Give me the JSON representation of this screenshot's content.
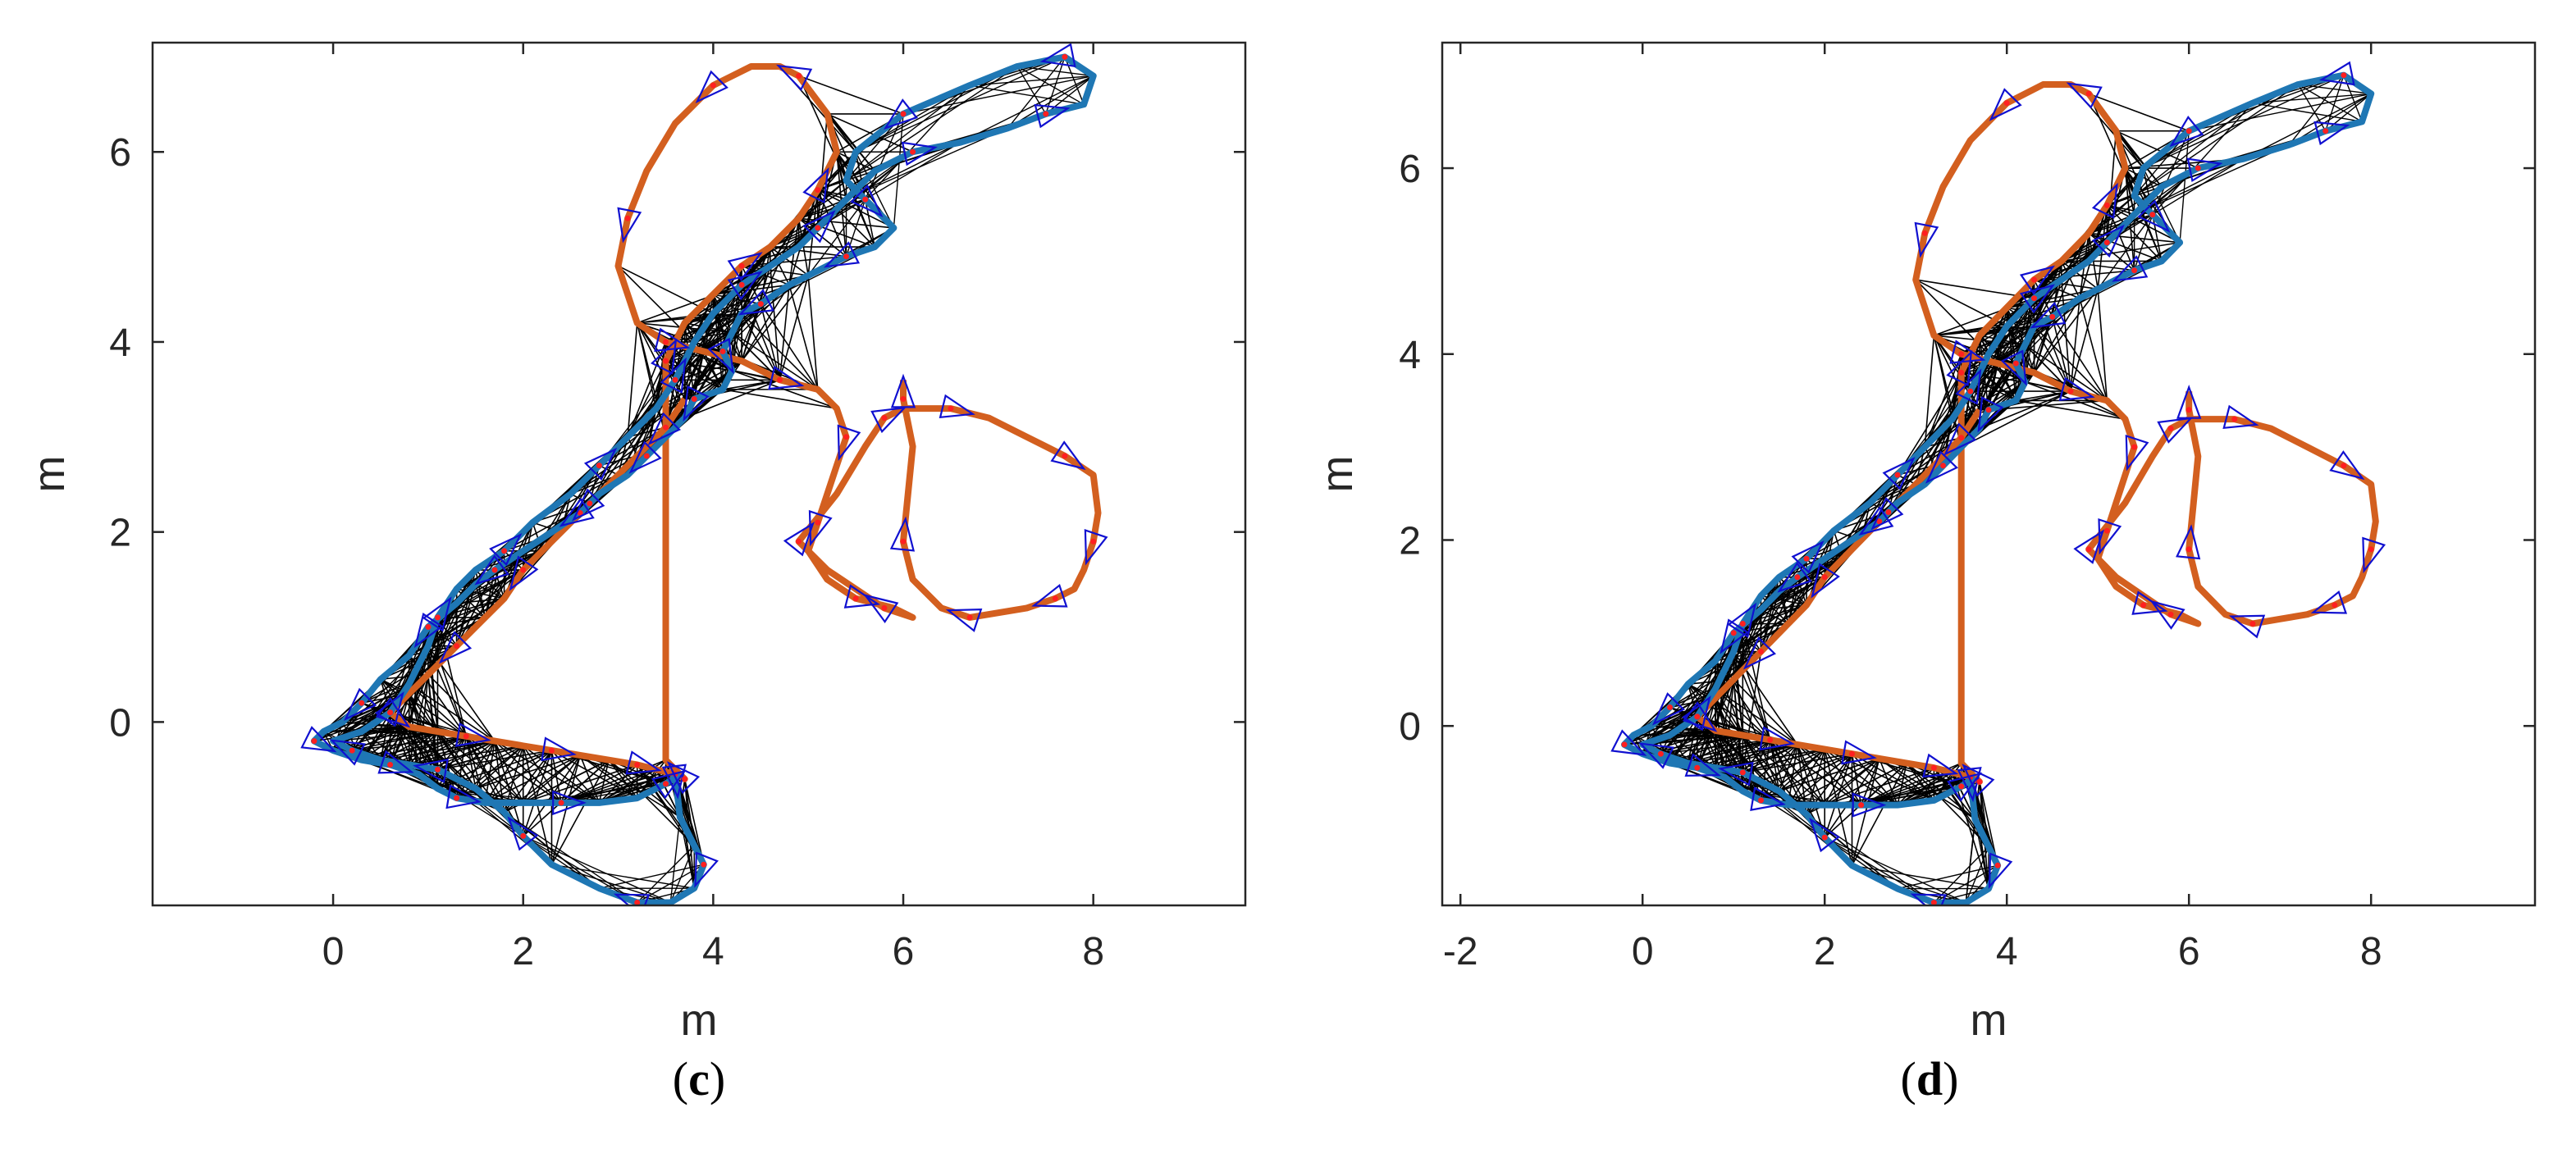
{
  "chart_data": [
    {
      "type": "line",
      "panel_label": "(c)",
      "xlabel": "m",
      "ylabel": "m",
      "xlim": [
        -1.9,
        9.6
      ],
      "ylim": [
        -1.93,
        7.15
      ],
      "xticks": [
        0,
        2,
        4,
        6,
        8
      ],
      "yticks": [
        0,
        2,
        4,
        6
      ],
      "grid": false,
      "colors": {
        "blue_trajectory": "#1f77b4",
        "orange_trajectory": "#d35f1f",
        "triangles": "#1010d0",
        "points": "#ff2020",
        "edges": "#000000"
      },
      "series": [
        {
          "x": [
            3.6,
            3.65,
            3.8,
            3.9,
            3.8,
            3.55,
            3.2,
            2.8,
            2.3,
            2.0,
            1.8,
            1.5,
            1.1,
            0.8,
            0.5,
            0.2,
            0.0,
            0.3,
            0.6,
            0.8,
            1.0,
            1.1,
            1.3,
            1.5,
            1.8,
            2.1,
            2.5,
            2.8,
            3.1,
            3.4,
            3.6,
            3.8,
            4.0,
            4.3,
            4.6,
            4.9,
            5.1,
            5.4,
            5.7,
            6.1,
            6.6,
            7.1,
            7.5,
            7.9,
            8.0,
            7.7,
            7.2,
            6.7,
            6.0,
            5.5,
            5.4,
            5.6,
            5.9,
            5.7,
            5.4,
            5.0,
            4.8,
            4.5,
            4.3,
            4.2,
            4.1,
            4.2,
            4.1,
            3.8,
            3.7,
            3.5,
            3.3,
            3.1,
            2.8,
            2.6,
            2.3,
            2.0,
            1.7,
            1.5,
            1.3,
            1.0,
            0.8,
            0.5,
            0.3,
            0.1,
            -0.1,
            -0.2,
            0.0,
            0.3,
            0.6,
            0.9,
            1.1,
            1.3,
            1.6,
            2.0,
            2.4,
            2.8,
            3.2,
            3.5,
            3.65
          ],
          "y": [
            -0.55,
            -1.0,
            -1.3,
            -1.5,
            -1.75,
            -1.9,
            -1.9,
            -1.75,
            -1.5,
            -1.2,
            -0.95,
            -0.7,
            -0.5,
            -0.45,
            -0.4,
            -0.3,
            -0.2,
            -0.1,
            0.1,
            0.4,
            0.8,
            1.1,
            1.4,
            1.6,
            1.8,
            2.1,
            2.4,
            2.7,
            3.0,
            3.3,
            3.6,
            4.0,
            4.3,
            4.6,
            4.8,
            5.0,
            5.2,
            5.5,
            5.8,
            6.0,
            6.1,
            6.25,
            6.4,
            6.5,
            6.8,
            7.0,
            6.9,
            6.7,
            6.4,
            6.0,
            5.7,
            5.5,
            5.2,
            5.0,
            4.9,
            4.7,
            4.6,
            4.4,
            4.3,
            4.1,
            3.9,
            3.7,
            3.5,
            3.4,
            3.2,
            3.0,
            2.8,
            2.6,
            2.4,
            2.2,
            2.0,
            1.8,
            1.6,
            1.45,
            1.25,
            1.0,
            0.7,
            0.45,
            0.2,
            0.0,
            -0.1,
            -0.2,
            -0.3,
            -0.4,
            -0.45,
            -0.55,
            -0.7,
            -0.8,
            -0.85,
            -0.85,
            -0.85,
            -0.85,
            -0.8,
            -0.65,
            -0.55
          ]
        },
        {
          "x": [
            3.7,
            3.5,
            3.2,
            3.0,
            2.7,
            2.4,
            2.2,
            2.0,
            1.8,
            1.6,
            1.3,
            1.0,
            0.8,
            0.6,
            0.8,
            1.1,
            1.4,
            1.7,
            2.0,
            2.3,
            2.6,
            2.9,
            3.2,
            3.4,
            3.6,
            3.7,
            3.6,
            3.5,
            3.5,
            3.7,
            4.0,
            4.3,
            4.6,
            4.9,
            5.1,
            5.3,
            5.2,
            4.9,
            4.7,
            4.4,
            4.0,
            3.6,
            3.3,
            3.1,
            3.0,
            3.2,
            3.5,
            3.9,
            4.3,
            4.7,
            5.1,
            5.3,
            5.4,
            5.3,
            5.2,
            5.1,
            5.0,
            5.2,
            5.5,
            5.9,
            6.1,
            5.8,
            5.5,
            5.2,
            4.9,
            5.3,
            5.6,
            5.8,
            6.0,
            6.2,
            6.5,
            6.9,
            7.3,
            7.7,
            8.0,
            8.05,
            8.0,
            7.9,
            7.8,
            7.6,
            7.3,
            7.0,
            6.7,
            6.4,
            6.1,
            6.0,
            6.05,
            6.1,
            6.0,
            6.0
          ],
          "y": [
            3.4,
            3.1,
            2.8,
            2.6,
            2.3,
            2.0,
            1.8,
            1.6,
            1.3,
            1.1,
            0.8,
            0.5,
            0.3,
            0.1,
            -0.05,
            -0.1,
            -0.15,
            -0.2,
            -0.25,
            -0.3,
            -0.35,
            -0.4,
            -0.45,
            -0.5,
            -0.55,
            -0.6,
            -0.5,
            -0.4,
            3.8,
            4.2,
            4.5,
            4.8,
            5.0,
            5.3,
            5.6,
            6.0,
            6.4,
            6.8,
            6.9,
            6.9,
            6.7,
            6.3,
            5.8,
            5.3,
            4.8,
            4.2,
            4.0,
            3.9,
            3.8,
            3.6,
            3.5,
            3.3,
            3.0,
            2.7,
            2.4,
            2.1,
            1.8,
            1.5,
            1.3,
            1.2,
            1.1,
            1.2,
            1.4,
            1.6,
            1.9,
            2.4,
            2.9,
            3.2,
            3.3,
            3.3,
            3.3,
            3.2,
            3.0,
            2.8,
            2.6,
            2.2,
            1.9,
            1.6,
            1.4,
            1.3,
            1.2,
            1.15,
            1.1,
            1.2,
            1.5,
            1.9,
            2.4,
            2.9,
            3.4,
            3.6
          ]
        }
      ]
    },
    {
      "type": "line",
      "panel_label": "(d)",
      "xlabel": "m",
      "ylabel": "m",
      "xlim": [
        -2.2,
        9.8
      ],
      "ylim": [
        -1.93,
        7.35
      ],
      "xticks": [
        -2,
        0,
        2,
        4,
        6,
        8
      ],
      "yticks": [
        0,
        2,
        4,
        6
      ],
      "grid": false,
      "colors": {
        "blue_trajectory": "#1f77b4",
        "orange_trajectory": "#d35f1f",
        "triangles": "#1010d0",
        "points": "#ff2020",
        "edges": "#000000"
      },
      "series": [
        {
          "x": [
            3.6,
            3.65,
            3.8,
            3.9,
            3.8,
            3.55,
            3.2,
            2.8,
            2.3,
            2.0,
            1.8,
            1.5,
            1.1,
            0.8,
            0.5,
            0.2,
            0.0,
            0.3,
            0.6,
            0.8,
            1.0,
            1.1,
            1.3,
            1.5,
            1.8,
            2.1,
            2.5,
            2.8,
            3.1,
            3.4,
            3.6,
            3.8,
            4.0,
            4.3,
            4.6,
            4.9,
            5.1,
            5.4,
            5.7,
            6.1,
            6.6,
            7.1,
            7.5,
            7.9,
            8.0,
            7.7,
            7.2,
            6.7,
            6.0,
            5.5,
            5.4,
            5.6,
            5.9,
            5.7,
            5.4,
            5.0,
            4.8,
            4.5,
            4.3,
            4.2,
            4.1,
            4.2,
            4.1,
            3.8,
            3.7,
            3.5,
            3.3,
            3.1,
            2.8,
            2.6,
            2.3,
            2.0,
            1.7,
            1.5,
            1.3,
            1.0,
            0.8,
            0.5,
            0.3,
            0.1,
            -0.1,
            -0.2,
            0.0,
            0.3,
            0.6,
            0.9,
            1.1,
            1.3,
            1.6,
            2.0,
            2.4,
            2.8,
            3.2,
            3.5,
            3.65
          ],
          "y": [
            -0.55,
            -1.0,
            -1.3,
            -1.5,
            -1.75,
            -1.9,
            -1.9,
            -1.75,
            -1.5,
            -1.2,
            -0.95,
            -0.7,
            -0.5,
            -0.45,
            -0.4,
            -0.3,
            -0.2,
            -0.1,
            0.1,
            0.4,
            0.8,
            1.1,
            1.4,
            1.6,
            1.8,
            2.1,
            2.4,
            2.7,
            3.0,
            3.3,
            3.6,
            4.0,
            4.3,
            4.6,
            4.8,
            5.0,
            5.2,
            5.5,
            5.8,
            6.0,
            6.1,
            6.25,
            6.4,
            6.5,
            6.8,
            7.0,
            6.9,
            6.7,
            6.4,
            6.0,
            5.7,
            5.5,
            5.2,
            5.0,
            4.9,
            4.7,
            4.6,
            4.4,
            4.3,
            4.1,
            3.9,
            3.7,
            3.5,
            3.4,
            3.2,
            3.0,
            2.8,
            2.6,
            2.4,
            2.2,
            2.0,
            1.8,
            1.6,
            1.45,
            1.25,
            1.0,
            0.7,
            0.45,
            0.2,
            0.0,
            -0.1,
            -0.2,
            -0.3,
            -0.4,
            -0.45,
            -0.55,
            -0.7,
            -0.8,
            -0.85,
            -0.85,
            -0.85,
            -0.85,
            -0.8,
            -0.65,
            -0.55
          ]
        },
        {
          "x": [
            3.7,
            3.5,
            3.2,
            3.0,
            2.7,
            2.4,
            2.2,
            2.0,
            1.8,
            1.6,
            1.3,
            1.0,
            0.8,
            0.6,
            0.8,
            1.1,
            1.4,
            1.7,
            2.0,
            2.3,
            2.6,
            2.9,
            3.2,
            3.4,
            3.6,
            3.7,
            3.6,
            3.5,
            3.5,
            3.7,
            4.0,
            4.3,
            4.6,
            4.9,
            5.1,
            5.3,
            5.2,
            4.9,
            4.7,
            4.4,
            4.0,
            3.6,
            3.3,
            3.1,
            3.0,
            3.2,
            3.5,
            3.9,
            4.3,
            4.7,
            5.1,
            5.3,
            5.4,
            5.3,
            5.2,
            5.1,
            5.0,
            5.2,
            5.5,
            5.9,
            6.1,
            5.8,
            5.5,
            5.2,
            4.9,
            5.3,
            5.6,
            5.8,
            6.0,
            6.2,
            6.5,
            6.9,
            7.3,
            7.7,
            8.0,
            8.05,
            8.0,
            7.9,
            7.8,
            7.6,
            7.3,
            7.0,
            6.7,
            6.4,
            6.1,
            6.0,
            6.05,
            6.1,
            6.0,
            6.0
          ],
          "y": [
            3.4,
            3.1,
            2.8,
            2.6,
            2.3,
            2.0,
            1.8,
            1.6,
            1.3,
            1.1,
            0.8,
            0.5,
            0.3,
            0.1,
            -0.05,
            -0.1,
            -0.15,
            -0.2,
            -0.25,
            -0.3,
            -0.35,
            -0.4,
            -0.45,
            -0.5,
            -0.55,
            -0.6,
            -0.5,
            -0.4,
            3.8,
            4.2,
            4.5,
            4.8,
            5.0,
            5.3,
            5.6,
            6.0,
            6.4,
            6.8,
            6.9,
            6.9,
            6.7,
            6.3,
            5.8,
            5.3,
            4.8,
            4.2,
            4.0,
            3.9,
            3.8,
            3.6,
            3.5,
            3.3,
            3.0,
            2.7,
            2.4,
            2.1,
            1.8,
            1.5,
            1.3,
            1.2,
            1.1,
            1.2,
            1.4,
            1.6,
            1.9,
            2.4,
            2.9,
            3.2,
            3.3,
            3.3,
            3.3,
            3.2,
            3.0,
            2.8,
            2.6,
            2.2,
            1.9,
            1.6,
            1.4,
            1.3,
            1.2,
            1.15,
            1.1,
            1.2,
            1.5,
            1.9,
            2.4,
            2.9,
            3.4,
            3.6
          ]
        }
      ]
    }
  ]
}
